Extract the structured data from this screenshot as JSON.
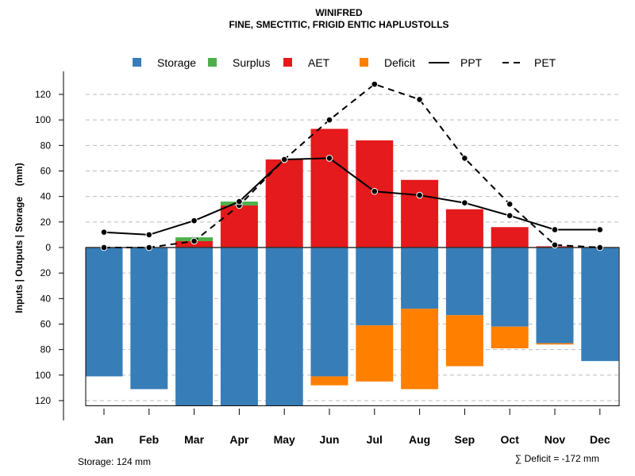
{
  "chart_data": {
    "type": "bar",
    "title": "WINIFRED",
    "subtitle": "FINE, SMECTITIC, FRIGID ENTIC HAPLUSTOLLS",
    "ylabel": "Inputs | Outputs | Storage    (mm)",
    "xlabel": "",
    "ylim": [
      -124,
      130
    ],
    "yticks": [
      120,
      100,
      80,
      60,
      40,
      20,
      0,
      -20,
      -40,
      -60,
      -80,
      -100,
      -120
    ],
    "ytick_labels": [
      "120",
      "100",
      "80",
      "60",
      "40",
      "20",
      "0",
      "20",
      "40",
      "60",
      "80",
      "100",
      "120"
    ],
    "grid": true,
    "legend_position": "top",
    "categories": [
      "Jan",
      "Feb",
      "Mar",
      "Apr",
      "May",
      "Jun",
      "Jul",
      "Aug",
      "Sep",
      "Oct",
      "Nov",
      "Dec"
    ],
    "series": [
      {
        "name": "Storage",
        "kind": "bar-negative",
        "color": "#377EB8",
        "values": [
          101,
          111,
          124,
          124,
          124,
          101,
          61,
          48,
          53,
          62,
          75,
          89
        ]
      },
      {
        "name": "Surplus",
        "kind": "bar-stack",
        "color": "#4DAF4A",
        "values": [
          0,
          0,
          3,
          3,
          0,
          0,
          0,
          0,
          0,
          0,
          0,
          0
        ]
      },
      {
        "name": "AET",
        "kind": "bar",
        "color": "#E41A1C",
        "values": [
          0,
          0,
          5,
          33,
          69,
          93,
          84,
          53,
          30,
          16,
          1,
          0
        ]
      },
      {
        "name": "Deficit",
        "kind": "bar-negative-stack",
        "color": "#FF7F00",
        "values": [
          0,
          0,
          0,
          0,
          0,
          7,
          44,
          63,
          40,
          17,
          1,
          0
        ]
      },
      {
        "name": "PPT",
        "kind": "line-solid",
        "color": "#000000",
        "values": [
          12,
          10,
          21,
          36,
          69,
          70,
          44,
          41,
          35,
          25,
          14,
          14
        ]
      },
      {
        "name": "PET",
        "kind": "line-dashed",
        "color": "#000000",
        "values": [
          0,
          0,
          5,
          33,
          69,
          100,
          128,
          116,
          70,
          34,
          2,
          0
        ]
      }
    ],
    "annotations": {
      "storage": "Storage: 124 mm",
      "deficit": "∑ Deficit = -172 mm"
    }
  }
}
